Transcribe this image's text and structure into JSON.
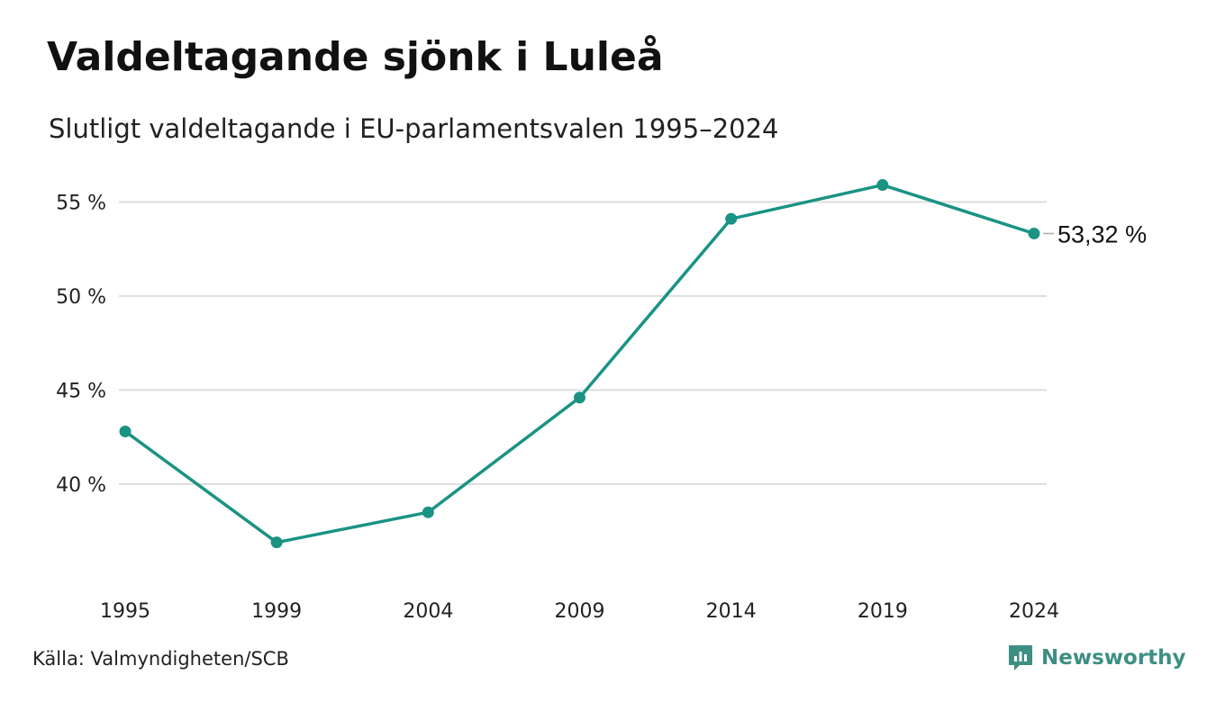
{
  "header": {
    "title": "Valdeltagande sjönk i Luleå",
    "subtitle": "Slutligt valdeltagande i EU-parlamentsvalen 1995–2024"
  },
  "footer": {
    "source": "Källa: Valmyndigheten/SCB",
    "brand": "Newsworthy",
    "brand_icon": "newsworthy-logo-icon"
  },
  "colors": {
    "line": "#1a9384",
    "grid": "#dddddd",
    "text": "#222222",
    "brand": "#3e8f83"
  },
  "chart_data": {
    "type": "line",
    "title": "Valdeltagande sjönk i Luleå",
    "subtitle": "Slutligt valdeltagande i EU-parlamentsvalen 1995–2024",
    "xlabel": "",
    "ylabel": "",
    "x": [
      "1995",
      "1999",
      "2004",
      "2009",
      "2014",
      "2019",
      "2024"
    ],
    "series": [
      {
        "values": [
          42.8,
          36.9,
          38.5,
          44.6,
          54.1,
          55.9,
          53.32
        ]
      }
    ],
    "y_ticks": [
      40,
      45,
      50,
      55
    ],
    "y_tick_labels": [
      "40 %",
      "45 %",
      "50 %",
      "55 %"
    ],
    "ylim": [
      34.3,
      56.5
    ],
    "grid": true,
    "legend": "none",
    "end_label": "53,32 %"
  }
}
